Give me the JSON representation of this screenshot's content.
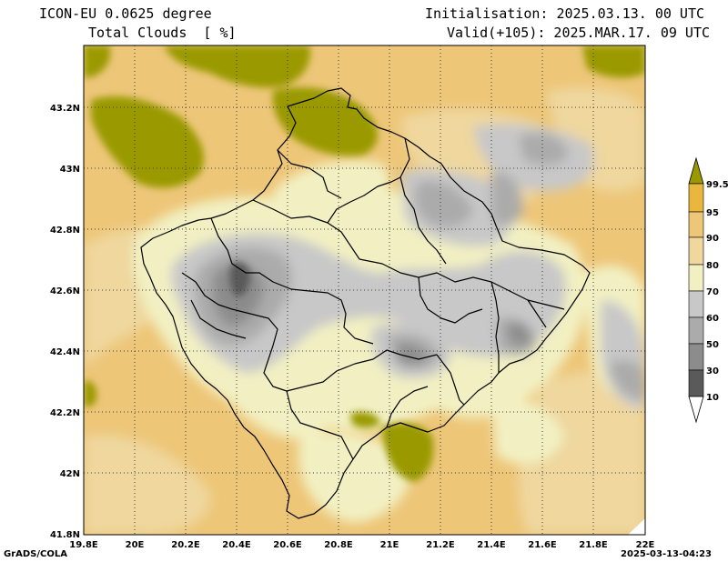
{
  "header": {
    "model": "ICON-EU 0.0625 degree",
    "variable": "Total Clouds  [ %]",
    "init": "Initialisation: 2025.03.13. 00 UTC",
    "valid": "Valid(+105): 2025.MAR.17. 09 UTC"
  },
  "footer": {
    "left": "GrADS/COLA",
    "right": "2025-03-13-04:23"
  },
  "axes": {
    "lon_ticks": [
      "19.8E",
      "20E",
      "20.2E",
      "20.4E",
      "20.6E",
      "20.8E",
      "21E",
      "21.2E",
      "21.4E",
      "21.6E",
      "21.8E",
      "22E"
    ],
    "lat_ticks": [
      "43.2N",
      "43N",
      "42.8N",
      "42.6N",
      "42.4N",
      "42.2N",
      "42N",
      "41.8N"
    ],
    "lon_range": [
      19.8,
      22.0
    ],
    "lat_range": [
      41.8,
      43.4
    ]
  },
  "colorbar": {
    "levels": [
      "99.5",
      "95",
      "90",
      "80",
      "70",
      "60",
      "50",
      "30",
      "10"
    ],
    "colors": {
      "lt10": "#ffffff",
      "c10_30": "#5a5a5a",
      "c30_50": "#8c8c8c",
      "c50_60": "#ababab",
      "c60_70": "#c8c8c8",
      "c70_80": "#f2f0c2",
      "c80_90": "#efd79e",
      "c90_95": "#edc678",
      "c95_99": "#e9b73d",
      "gt99": "#9a9a00"
    }
  },
  "colors": {
    "base": "#edc678",
    "grid": "#404040",
    "border": "#000000"
  }
}
